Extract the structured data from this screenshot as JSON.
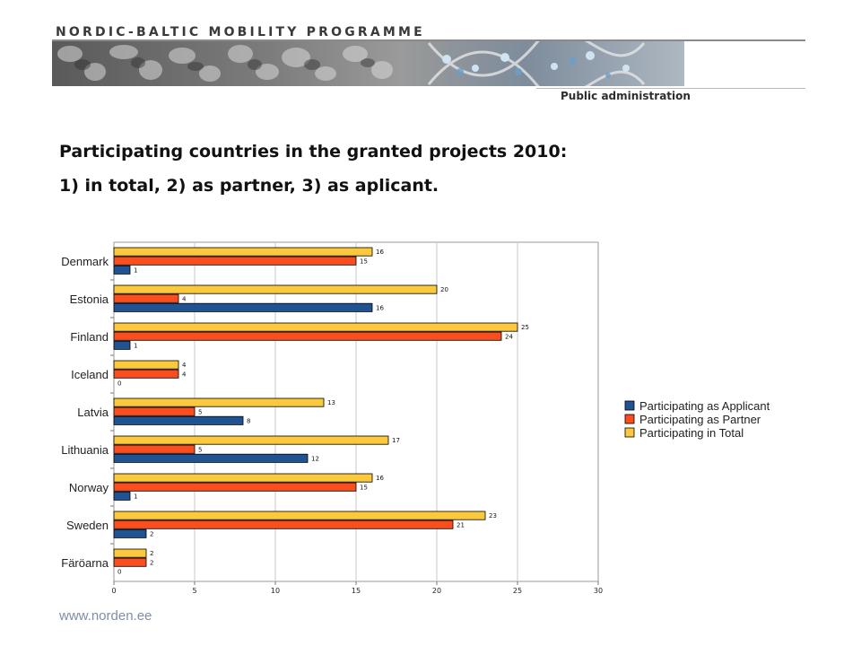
{
  "header": {
    "programme": "NORDIC-BALTIC MOBILITY PROGRAMME",
    "section": "Public administration"
  },
  "heading": {
    "line1": "Participating countries in the  granted projects 2010:",
    "line2": "1) in total,  2) as partner, 3) as aplicant."
  },
  "footer": {
    "url": "www.norden.ee"
  },
  "chart_data": {
    "type": "bar",
    "orientation": "horizontal",
    "categories": [
      "Denmark",
      "Estonia",
      "Finland",
      "Iceland",
      "Latvia",
      "Lithuania",
      "Norway",
      "Sweden",
      "Färöarna"
    ],
    "series": [
      {
        "name": "Participating in Total",
        "color": "#fbc93b",
        "values": [
          16,
          20,
          25,
          4,
          13,
          17,
          16,
          23,
          2
        ],
        "labels": [
          "16",
          "20",
          "25",
          "4",
          "13",
          "17",
          "16",
          "23",
          "2"
        ]
      },
      {
        "name": "Participating as Partner",
        "color": "#fb4d1e",
        "values": [
          15,
          4,
          24,
          4,
          5,
          5,
          15,
          21,
          2
        ],
        "labels": [
          "15",
          "4",
          "24",
          "4",
          "5",
          "5",
          "15",
          "21",
          "2"
        ]
      },
      {
        "name": "Participating as Applicant",
        "color": "#1f5393",
        "values": [
          1,
          16,
          1,
          0,
          8,
          12,
          1,
          2,
          0
        ],
        "labels": [
          "1",
          "16",
          "1",
          "0",
          "8",
          "12",
          "1",
          "2",
          "0"
        ]
      }
    ],
    "xlim": [
      0,
      30
    ],
    "xticks": [
      0,
      5,
      10,
      15,
      20,
      25,
      30
    ],
    "xtick_labels": [
      "0",
      "5",
      "10",
      "15",
      "20",
      "25",
      "30"
    ],
    "grid": true,
    "legend": {
      "position": "right",
      "entries": [
        "Participating as Applicant",
        "Participating as Partner",
        "Participating in Total"
      ],
      "colors": [
        "#1f5393",
        "#fb4d1e",
        "#fbc93b"
      ]
    }
  }
}
